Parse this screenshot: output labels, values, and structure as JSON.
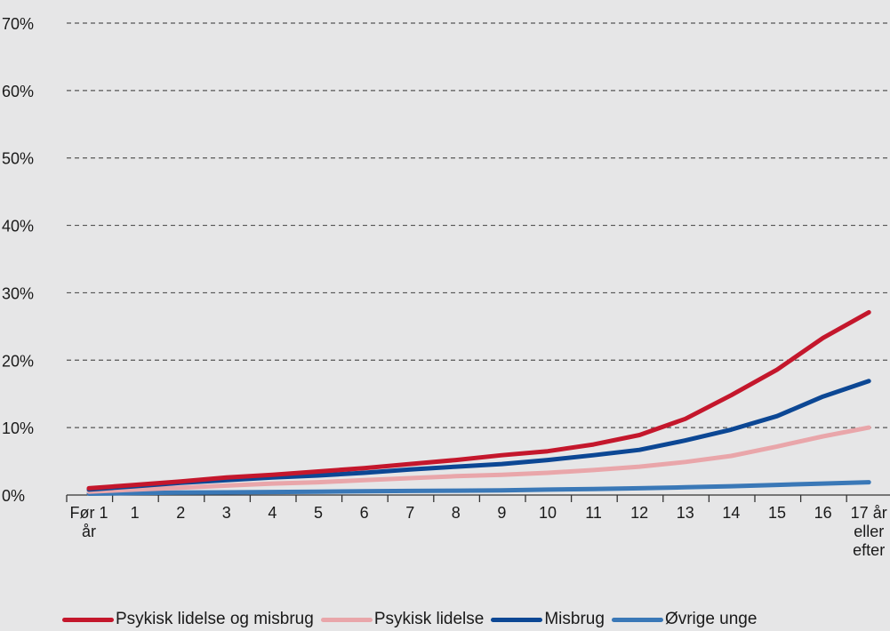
{
  "chart_data": {
    "type": "line",
    "title": "",
    "xlabel": "",
    "ylabel": "",
    "categories": [
      "Før 1 år",
      "1",
      "2",
      "3",
      "4",
      "5",
      "6",
      "7",
      "8",
      "9",
      "10",
      "11",
      "12",
      "13",
      "14",
      "15",
      "16",
      "17 år eller efter"
    ],
    "category_lines": [
      [
        "Før 1",
        "år"
      ],
      [
        "1"
      ],
      [
        "2"
      ],
      [
        "3"
      ],
      [
        "4"
      ],
      [
        "5"
      ],
      [
        "6"
      ],
      [
        "7"
      ],
      [
        "8"
      ],
      [
        "9"
      ],
      [
        "10"
      ],
      [
        "11"
      ],
      [
        "12"
      ],
      [
        "13"
      ],
      [
        "14"
      ],
      [
        "15"
      ],
      [
        "16"
      ],
      [
        "17 år",
        "eller",
        "efter"
      ]
    ],
    "ylim": [
      0,
      70
    ],
    "yticks": [
      0,
      10,
      20,
      30,
      40,
      50,
      60,
      70
    ],
    "ytick_labels": [
      "0%",
      "10%",
      "20%",
      "30%",
      "40%",
      "50%",
      "60%",
      "70%"
    ],
    "grid": true,
    "legend_position": "bottom",
    "series": [
      {
        "name": "Psykisk lidelse og misbrug",
        "color": "#c4172c",
        "values": [
          1.0,
          1.5,
          2.0,
          2.6,
          3.0,
          3.5,
          4.0,
          4.6,
          5.2,
          5.9,
          6.5,
          7.5,
          8.9,
          11.3,
          14.8,
          18.6,
          23.3,
          27.1
        ]
      },
      {
        "name": "Psykisk lidelse",
        "color": "#e9a6aa",
        "values": [
          0.5,
          0.8,
          1.1,
          1.4,
          1.7,
          1.9,
          2.2,
          2.5,
          2.8,
          3.0,
          3.3,
          3.7,
          4.2,
          4.9,
          5.8,
          7.2,
          8.7,
          10.0
        ]
      },
      {
        "name": "Misbrug",
        "color": "#0c4794",
        "values": [
          0.8,
          1.3,
          1.8,
          2.2,
          2.6,
          2.9,
          3.3,
          3.8,
          4.2,
          4.6,
          5.2,
          5.9,
          6.7,
          8.1,
          9.7,
          11.7,
          14.6,
          16.9
        ]
      },
      {
        "name": "Øvrige unge",
        "color": "#3a78b7",
        "values": [
          0.2,
          0.3,
          0.35,
          0.4,
          0.45,
          0.5,
          0.55,
          0.6,
          0.65,
          0.7,
          0.8,
          0.9,
          1.0,
          1.15,
          1.3,
          1.5,
          1.7,
          1.9
        ]
      }
    ]
  }
}
